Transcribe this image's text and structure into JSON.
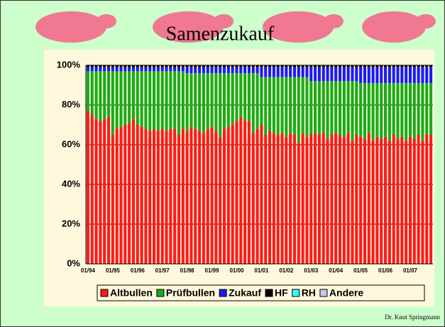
{
  "chart_data": {
    "type": "stacked-bar",
    "title": "Samenzukauf",
    "footer": "Dr. Knut Springmann",
    "categories": [
      "01/94",
      null,
      null,
      null,
      null,
      null,
      "01/95",
      null,
      null,
      null,
      null,
      null,
      "01/96",
      null,
      null,
      null,
      null,
      null,
      "01/97",
      null,
      null,
      null,
      null,
      null,
      "01/98",
      null,
      null,
      null,
      null,
      null,
      "01/99",
      null,
      null,
      null,
      null,
      null,
      "01/00",
      null,
      null,
      null,
      null,
      null,
      "01/01",
      null,
      null,
      null,
      null,
      null,
      "01/02",
      null,
      null,
      null,
      null,
      null,
      "01/03",
      null,
      null,
      null,
      null,
      null,
      "01/04",
      null,
      null,
      null,
      null,
      null,
      "01/05",
      null,
      null,
      null,
      null,
      null,
      "01/06",
      null,
      null,
      null,
      null,
      null,
      "01/07",
      null,
      null,
      null,
      null,
      null
    ],
    "series": [
      {
        "name": "Altbullen",
        "color": "#ff1a1a",
        "values": [
          77,
          75,
          73,
          72,
          73,
          74,
          65,
          68,
          69,
          70,
          71,
          73,
          70,
          69,
          68,
          67,
          68,
          67,
          68,
          67,
          68,
          68,
          65,
          68,
          67,
          69,
          68,
          67,
          66,
          68,
          69,
          67,
          64,
          68,
          69,
          70,
          72,
          74,
          72,
          72,
          66,
          68,
          70,
          65,
          67,
          66,
          65,
          66,
          64,
          66,
          65,
          61,
          66,
          64,
          65,
          66,
          65,
          66,
          63,
          65,
          66,
          65,
          64,
          66,
          62,
          65,
          64,
          63,
          66,
          62,
          64,
          63,
          64,
          62,
          65,
          63,
          64,
          62,
          64,
          63,
          65,
          62,
          65,
          65
        ]
      },
      {
        "name": "Prüfbullen",
        "color": "#1aab1a",
        "values": [
          20,
          22,
          24,
          25,
          24,
          23,
          32,
          29,
          28,
          27,
          26,
          24,
          27,
          28,
          29,
          30,
          29,
          30,
          29,
          30,
          29,
          29,
          32,
          29,
          29,
          27,
          28,
          29,
          30,
          28,
          27,
          29,
          32,
          28,
          27,
          26,
          24,
          22,
          24,
          24,
          30,
          28,
          24,
          29,
          27,
          28,
          29,
          28,
          30,
          28,
          29,
          33,
          28,
          30,
          27,
          26,
          27,
          26,
          29,
          27,
          26,
          27,
          28,
          26,
          30,
          27,
          27,
          28,
          25,
          29,
          27,
          28,
          27,
          29,
          26,
          28,
          27,
          29,
          27,
          28,
          26,
          29,
          26,
          26
        ]
      },
      {
        "name": "Zukauf",
        "color": "#1a1aff",
        "values": [
          2,
          2,
          2,
          2,
          2,
          2,
          2,
          2,
          2,
          2,
          2,
          2,
          2,
          2,
          2,
          2,
          2,
          2,
          2,
          2,
          2,
          2,
          2,
          2,
          3,
          3,
          3,
          3,
          3,
          3,
          3,
          3,
          3,
          3,
          3,
          3,
          3,
          3,
          3,
          3,
          3,
          3,
          5,
          5,
          5,
          5,
          5,
          5,
          5,
          5,
          5,
          5,
          5,
          5,
          7,
          7,
          7,
          7,
          7,
          7,
          7,
          7,
          7,
          7,
          7,
          7,
          8,
          8,
          8,
          8,
          8,
          8,
          8,
          8,
          8,
          8,
          8,
          8,
          8,
          8,
          8,
          8,
          8,
          8
        ]
      },
      {
        "name": "HF",
        "color": "#000000",
        "values": [
          1,
          1,
          1,
          1,
          1,
          1,
          1,
          1,
          1,
          1,
          1,
          1,
          1,
          1,
          1,
          1,
          1,
          1,
          1,
          1,
          1,
          1,
          1,
          1,
          1,
          1,
          1,
          1,
          1,
          1,
          1,
          1,
          1,
          1,
          1,
          1,
          1,
          1,
          1,
          1,
          1,
          1,
          1,
          1,
          1,
          1,
          1,
          1,
          1,
          1,
          1,
          1,
          1,
          1,
          1,
          1,
          1,
          1,
          1,
          1,
          1,
          1,
          1,
          1,
          1,
          1,
          1,
          1,
          1,
          1,
          1,
          1,
          1,
          1,
          1,
          1,
          1,
          1,
          1,
          1,
          1,
          1,
          1,
          1
        ]
      },
      {
        "name": "RH",
        "color": "#33ffff",
        "values": [
          0,
          0,
          0,
          0,
          0,
          0,
          0,
          0,
          0,
          0,
          0,
          0,
          0,
          0,
          0,
          0,
          0,
          0,
          0,
          0,
          0,
          0,
          0,
          0,
          0,
          0,
          0,
          0,
          0,
          0,
          0,
          0,
          0,
          0,
          0,
          0,
          0,
          0,
          0,
          0,
          0,
          0,
          0,
          0,
          0,
          0,
          0,
          0,
          0,
          0,
          0,
          0,
          0,
          0,
          0,
          0,
          0,
          0,
          0,
          0,
          0,
          0,
          0,
          0,
          0,
          0,
          0,
          0,
          0,
          0,
          0,
          0,
          0,
          0,
          0,
          0,
          0,
          0,
          0,
          0,
          0,
          0,
          0,
          0
        ]
      },
      {
        "name": "Andere",
        "color": "#c8c8f0",
        "values": [
          0,
          0,
          0,
          0,
          0,
          0,
          0,
          0,
          0,
          0,
          0,
          0,
          0,
          0,
          0,
          0,
          0,
          0,
          0,
          0,
          0,
          0,
          0,
          0,
          0,
          0,
          0,
          0,
          0,
          0,
          0,
          0,
          0,
          0,
          0,
          0,
          0,
          0,
          0,
          0,
          0,
          0,
          0,
          0,
          0,
          0,
          0,
          0,
          0,
          0,
          0,
          0,
          0,
          0,
          0,
          0,
          0,
          0,
          0,
          0,
          0,
          0,
          0,
          0,
          0,
          0,
          0,
          0,
          0,
          0,
          0,
          0,
          0,
          0,
          0,
          0,
          0,
          0,
          0,
          0,
          0,
          0,
          0,
          0
        ]
      }
    ],
    "ylim": [
      0,
      100
    ],
    "yticks": [
      {
        "value": 0,
        "label": "0%"
      },
      {
        "value": 20,
        "label": "20%"
      },
      {
        "value": 40,
        "label": "40%"
      },
      {
        "value": 60,
        "label": "60%"
      },
      {
        "value": 80,
        "label": "80%"
      },
      {
        "value": 100,
        "label": "100%"
      }
    ],
    "grid": true
  }
}
